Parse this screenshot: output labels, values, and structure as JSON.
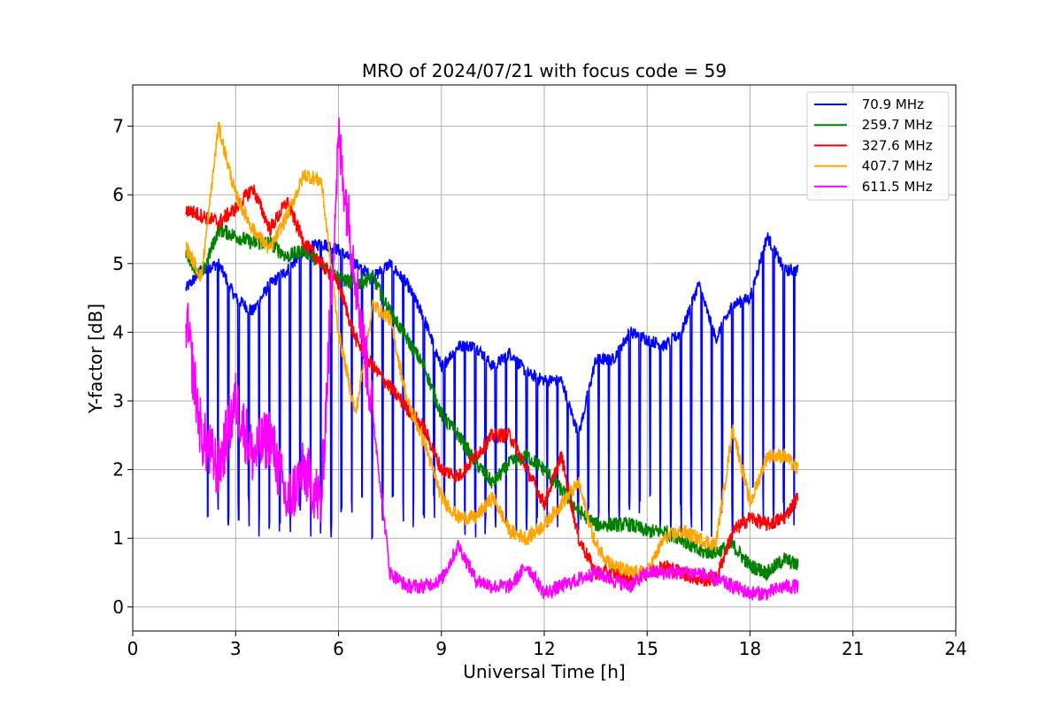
{
  "chart_data": {
    "type": "line",
    "title": "MRO of 2024/07/21 with focus code = 59",
    "xlabel": "Universal Time [h]",
    "ylabel": "Y-factor [dB]",
    "xlim": [
      0,
      24
    ],
    "ylim": [
      -0.35,
      7.6
    ],
    "xticks": [
      0,
      3,
      6,
      9,
      12,
      15,
      18,
      21,
      24
    ],
    "yticks": [
      0,
      1,
      2,
      3,
      4,
      5,
      6,
      7
    ],
    "grid": true,
    "legend_position": "top-right",
    "series": [
      {
        "name": " 70.9 MHz",
        "color": "#0000ff",
        "x": [
          1.5,
          2,
          2.5,
          3,
          3.5,
          4,
          4.5,
          5,
          5.5,
          6,
          6.5,
          7,
          7.5,
          8,
          8.5,
          9,
          9.5,
          10,
          10.5,
          11,
          11.5,
          12,
          12.5,
          13,
          13.5,
          14,
          14.5,
          15,
          15.5,
          16,
          16.5,
          17,
          17.5,
          18,
          18.5,
          19,
          19.4
        ],
        "y": [
          4.6,
          4.9,
          5.0,
          4.5,
          4.3,
          4.7,
          4.9,
          5.2,
          5.3,
          5.2,
          5.0,
          4.8,
          5.0,
          4.7,
          4.2,
          3.5,
          3.8,
          3.8,
          3.5,
          3.7,
          3.4,
          3.3,
          3.3,
          2.5,
          3.6,
          3.6,
          4.0,
          3.9,
          3.8,
          4.0,
          4.7,
          3.9,
          4.4,
          4.5,
          5.4,
          4.9,
          4.9
        ],
        "dip_y": 1.4
      },
      {
        "name": " 259.7 MHz",
        "color": "#008000",
        "x": [
          1.5,
          2,
          2.5,
          3,
          3.5,
          4,
          4.5,
          5,
          5.5,
          6,
          6.5,
          7,
          7.5,
          8,
          8.5,
          9,
          9.5,
          10,
          10.5,
          11,
          11.5,
          12,
          12.5,
          13,
          13.5,
          14,
          14.5,
          15,
          15.5,
          16,
          16.5,
          17,
          17.5,
          18,
          18.5,
          19,
          19.4
        ],
        "y": [
          5.2,
          4.8,
          5.5,
          5.4,
          5.3,
          5.3,
          5.1,
          5.2,
          5.0,
          4.8,
          4.7,
          4.8,
          4.3,
          3.9,
          3.5,
          2.8,
          2.5,
          2.1,
          1.8,
          2.1,
          2.2,
          2.0,
          1.7,
          1.4,
          1.2,
          1.2,
          1.2,
          1.1,
          1.1,
          1.0,
          0.8,
          0.8,
          0.9,
          0.6,
          0.5,
          0.7,
          0.6
        ]
      },
      {
        "name": " 327.6 MHz",
        "color": "#ff0000",
        "x": [
          1.5,
          2,
          2.5,
          3,
          3.5,
          4,
          4.5,
          5,
          5.5,
          6,
          6.5,
          7,
          7.5,
          8,
          8.5,
          9,
          9.5,
          10,
          10.5,
          11,
          11.5,
          12,
          12.5,
          13,
          13.5,
          14,
          14.5,
          15,
          15.5,
          16,
          16.5,
          17,
          17.5,
          18,
          18.5,
          19,
          19.4
        ],
        "y": [
          5.8,
          5.7,
          5.6,
          5.8,
          6.1,
          5.5,
          5.9,
          5.3,
          5.0,
          4.7,
          3.9,
          3.5,
          3.2,
          2.9,
          2.6,
          2.0,
          1.9,
          2.2,
          2.5,
          2.5,
          2.0,
          1.5,
          2.2,
          1.0,
          0.5,
          0.5,
          0.4,
          0.5,
          0.6,
          0.5,
          0.4,
          0.4,
          1.1,
          1.3,
          1.2,
          1.3,
          1.6
        ]
      },
      {
        "name": " 407.7 MHz",
        "color": "#ffa500",
        "x": [
          1.5,
          2,
          2.5,
          3,
          3.5,
          4,
          4.5,
          5,
          5.5,
          6,
          6.5,
          7,
          7.5,
          8,
          8.5,
          9,
          9.5,
          10,
          10.5,
          11,
          11.5,
          12,
          12.5,
          13,
          13.5,
          14,
          14.5,
          15,
          15.5,
          16,
          16.5,
          17,
          17.5,
          18,
          18.5,
          19,
          19.4
        ],
        "y": [
          5.3,
          4.8,
          7.0,
          6.0,
          5.5,
          5.2,
          5.7,
          6.3,
          6.2,
          4.0,
          2.8,
          4.4,
          4.2,
          3.0,
          2.4,
          1.6,
          1.3,
          1.3,
          1.6,
          1.1,
          1.0,
          1.2,
          1.5,
          1.8,
          0.9,
          0.6,
          0.5,
          0.5,
          1.0,
          1.1,
          1.0,
          0.9,
          2.6,
          1.5,
          2.2,
          2.2,
          2.0
        ]
      },
      {
        "name": " 611.5 MHz",
        "color": "#ff00ff",
        "x": [
          1.5,
          2,
          2.5,
          3,
          3.5,
          4,
          4.5,
          5,
          5.5,
          6,
          6.5,
          7,
          7.5,
          8,
          8.5,
          9,
          9.5,
          10,
          10.5,
          11,
          11.5,
          12,
          12.5,
          13,
          13.5,
          14,
          14.5,
          15,
          15.5,
          16,
          16.5,
          17,
          17.5,
          18,
          18.5,
          19,
          19.4
        ],
        "y": [
          4.4,
          2.5,
          2.0,
          3.0,
          2.2,
          2.5,
          1.5,
          2.0,
          1.5,
          6.8,
          4.8,
          2.8,
          0.5,
          0.3,
          0.3,
          0.4,
          0.9,
          0.4,
          0.3,
          0.3,
          0.6,
          0.2,
          0.3,
          0.4,
          0.5,
          0.4,
          0.3,
          0.5,
          0.5,
          0.5,
          0.5,
          0.4,
          0.3,
          0.2,
          0.2,
          0.3,
          0.3
        ]
      }
    ]
  }
}
